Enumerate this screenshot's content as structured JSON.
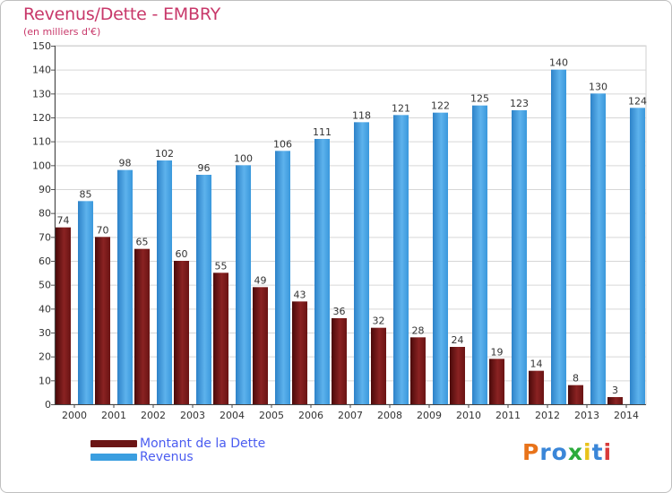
{
  "title": "Revenus/Dette - EMBRY",
  "subtitle": "(en milliers d'€)",
  "chart_data": {
    "type": "bar",
    "title": "Revenus/Dette - EMBRY",
    "ylabel": "(en milliers d'€)",
    "categories": [
      "2000",
      "2001",
      "2002",
      "2003",
      "2004",
      "2005",
      "2006",
      "2007",
      "2008",
      "2009",
      "2010",
      "2011",
      "2012",
      "2013",
      "2014"
    ],
    "series": [
      {
        "name": "Montant de la Dette",
        "color": "#7a1a1a",
        "values": [
          74,
          70,
          65,
          60,
          55,
          49,
          43,
          36,
          32,
          28,
          24,
          19,
          14,
          8,
          3
        ]
      },
      {
        "name": "Revenus",
        "color": "#3a9ee0",
        "values": [
          85,
          98,
          102,
          96,
          100,
          106,
          111,
          118,
          121,
          122,
          125,
          123,
          140,
          130,
          124
        ]
      }
    ],
    "ylim": [
      0,
      150
    ],
    "yticks": [
      0,
      10,
      20,
      30,
      40,
      50,
      60,
      70,
      80,
      90,
      100,
      110,
      120,
      130,
      140,
      150
    ],
    "grid": true,
    "legend_position": "bottom-left"
  },
  "legend": [
    {
      "label": "Montant de la Dette",
      "color": "#6b1515"
    },
    {
      "label": "Revenus",
      "color": "#3a9ee0"
    }
  ],
  "logo": {
    "letters": [
      "P",
      "r",
      "o",
      "x",
      "i",
      "t",
      "i"
    ],
    "colors": [
      "#e8731a",
      "#3a86d8",
      "#3a86d8",
      "#2cab3c",
      "#e8c21a",
      "#3a86d8",
      "#d83a3a"
    ]
  }
}
